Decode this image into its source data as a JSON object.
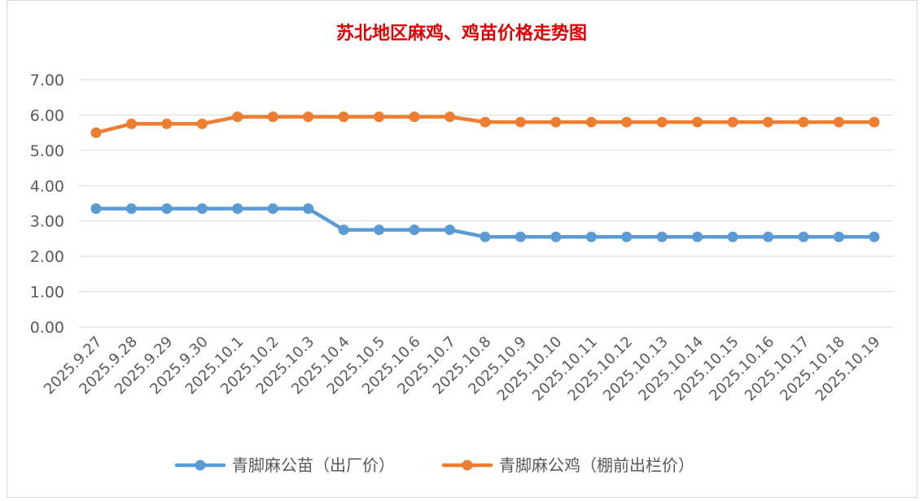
{
  "chart_data": {
    "type": "line",
    "title": "苏北地区麻鸡、鸡苗价格走势图",
    "xlabel": "",
    "ylabel": "",
    "ylim": [
      0,
      7
    ],
    "yticks": [
      "0.00",
      "1.00",
      "2.00",
      "3.00",
      "4.00",
      "5.00",
      "6.00",
      "7.00"
    ],
    "grid": true,
    "legend_position": "bottom",
    "categories": [
      "2025.9.27",
      "2025.9.28",
      "2025.9.29",
      "2025.9.30",
      "2025.10.1",
      "2025.10.2",
      "2025.10.3",
      "2025.10.4",
      "2025.10.5",
      "2025.10.6",
      "2025.10.7",
      "2025.10.8",
      "2025.10.9",
      "2025.10.10",
      "2025.10.11",
      "2025.10.12",
      "2025.10.13",
      "2025.10.14",
      "2025.10.15",
      "2025.10.16",
      "2025.10.17",
      "2025.10.18",
      "2025.10.19"
    ],
    "series": [
      {
        "name": "青脚麻公苗（出厂价）",
        "color": "#5b9bd5",
        "values": [
          3.35,
          3.35,
          3.35,
          3.35,
          3.35,
          3.35,
          3.35,
          2.75,
          2.75,
          2.75,
          2.75,
          2.55,
          2.55,
          2.55,
          2.55,
          2.55,
          2.55,
          2.55,
          2.55,
          2.55,
          2.55,
          2.55,
          2.55
        ]
      },
      {
        "name": "青脚麻公鸡（棚前出栏价）",
        "color": "#ed7d31",
        "values": [
          5.5,
          5.75,
          5.75,
          5.75,
          5.95,
          5.95,
          5.95,
          5.95,
          5.95,
          5.95,
          5.95,
          5.8,
          5.8,
          5.8,
          5.8,
          5.8,
          5.8,
          5.8,
          5.8,
          5.8,
          5.8,
          5.8,
          5.8
        ]
      }
    ]
  }
}
